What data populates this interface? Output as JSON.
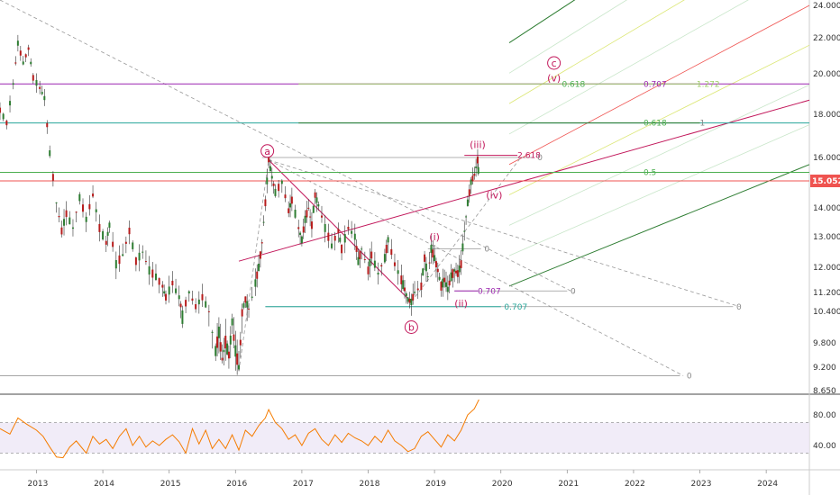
{
  "chart_data": {
    "type": "line",
    "instrument_note": "",
    "price_axis": {
      "ticks": [
        "24.000",
        "22.000",
        "20.000",
        "18.000",
        "16.000",
        "15.052",
        "14.000",
        "13.000",
        "12.000",
        "11.200",
        "10.400",
        "9.800",
        "9.200",
        "8.650"
      ],
      "tick_values": [
        24.0,
        22.0,
        20.0,
        18.0,
        16.0,
        15.052,
        14.0,
        13.0,
        12.0,
        11.2,
        10.4,
        9.8,
        9.2,
        8.65
      ],
      "current_value": "15.052",
      "current_value_num": 15.052,
      "ylim": [
        8.65,
        24.0
      ]
    },
    "time_axis": {
      "ticks": [
        "2013",
        "2014",
        "2015",
        "2016",
        "2017",
        "2018",
        "2019",
        "2020",
        "2021",
        "2022",
        "2023",
        "2024"
      ],
      "tick_years": [
        2013,
        2014,
        2015,
        2016,
        2017,
        2018,
        2019,
        2020,
        2021,
        2022,
        2023,
        2024
      ],
      "xlim": [
        2012.45,
        2024.65
      ]
    },
    "rsi_axis": {
      "ticks": [
        "80.00",
        "40.00"
      ],
      "tick_values": [
        80,
        40
      ],
      "upper_band": 70,
      "lower_band": 30,
      "last_value": 100
    },
    "price_series": [
      [
        2012.45,
        18.2
      ],
      [
        2012.55,
        17.6
      ],
      [
        2012.65,
        19.5
      ],
      [
        2012.72,
        21.7
      ],
      [
        2012.8,
        20.6
      ],
      [
        2012.88,
        21.4
      ],
      [
        2012.95,
        19.8
      ],
      [
        2013.05,
        19.3
      ],
      [
        2013.12,
        18.8
      ],
      [
        2013.2,
        16.2
      ],
      [
        2013.3,
        14.2
      ],
      [
        2013.38,
        13.2
      ],
      [
        2013.45,
        13.8
      ],
      [
        2013.55,
        13.3
      ],
      [
        2013.65,
        14.4
      ],
      [
        2013.75,
        13.6
      ],
      [
        2013.85,
        14.5
      ],
      [
        2013.95,
        13.3
      ],
      [
        2014.05,
        12.8
      ],
      [
        2014.1,
        13.4
      ],
      [
        2014.2,
        12.1
      ],
      [
        2014.3,
        12.4
      ],
      [
        2014.4,
        13.2
      ],
      [
        2014.5,
        12.2
      ],
      [
        2014.6,
        12.5
      ],
      [
        2014.7,
        11.9
      ],
      [
        2014.8,
        11.7
      ],
      [
        2014.9,
        11.4
      ],
      [
        2014.95,
        11.0
      ],
      [
        2015.05,
        11.5
      ],
      [
        2015.15,
        11.0
      ],
      [
        2015.2,
        10.3
      ],
      [
        2015.3,
        11.2
      ],
      [
        2015.4,
        10.6
      ],
      [
        2015.5,
        11.0
      ],
      [
        2015.6,
        10.4
      ],
      [
        2015.7,
        9.6
      ],
      [
        2015.75,
        10.0
      ],
      [
        2015.8,
        9.4
      ],
      [
        2015.85,
        9.8
      ],
      [
        2015.9,
        9.5
      ],
      [
        2015.95,
        10.2
      ],
      [
        2016.0,
        9.6
      ],
      [
        2016.05,
        9.2
      ],
      [
        2016.1,
        10.4
      ],
      [
        2016.15,
        10.9
      ],
      [
        2016.2,
        10.5
      ],
      [
        2016.3,
        11.5
      ],
      [
        2016.35,
        12.0
      ],
      [
        2016.4,
        12.8
      ],
      [
        2016.45,
        14.2
      ],
      [
        2016.5,
        15.9
      ],
      [
        2016.55,
        15.2
      ],
      [
        2016.6,
        14.6
      ],
      [
        2016.7,
        15.0
      ],
      [
        2016.8,
        13.9
      ],
      [
        2016.85,
        14.3
      ],
      [
        2016.95,
        13.3
      ],
      [
        2017.0,
        12.9
      ],
      [
        2017.05,
        13.6
      ],
      [
        2017.1,
        14.0
      ],
      [
        2017.15,
        13.4
      ],
      [
        2017.2,
        14.5
      ],
      [
        2017.25,
        14.1
      ],
      [
        2017.35,
        13.3
      ],
      [
        2017.45,
        12.7
      ],
      [
        2017.55,
        13.2
      ],
      [
        2017.6,
        12.6
      ],
      [
        2017.7,
        13.3
      ],
      [
        2017.8,
        13.0
      ],
      [
        2017.85,
        12.2
      ],
      [
        2017.9,
        12.6
      ],
      [
        2018.0,
        11.9
      ],
      [
        2018.05,
        12.4
      ],
      [
        2018.15,
        11.8
      ],
      [
        2018.25,
        12.3
      ],
      [
        2018.3,
        12.9
      ],
      [
        2018.4,
        12.1
      ],
      [
        2018.5,
        11.6
      ],
      [
        2018.55,
        11.3
      ],
      [
        2018.6,
        10.9
      ],
      [
        2018.65,
        10.8
      ],
      [
        2018.7,
        11.2
      ],
      [
        2018.8,
        11.4
      ],
      [
        2018.85,
        12.3
      ],
      [
        2018.9,
        11.7
      ],
      [
        2018.95,
        12.6
      ],
      [
        2019.0,
        12.3
      ],
      [
        2019.05,
        11.9
      ],
      [
        2019.1,
        11.4
      ],
      [
        2019.15,
        11.6
      ],
      [
        2019.2,
        11.3
      ],
      [
        2019.25,
        11.7
      ],
      [
        2019.3,
        11.9
      ],
      [
        2019.35,
        11.8
      ],
      [
        2019.4,
        12.1
      ],
      [
        2019.45,
        13.2
      ],
      [
        2019.5,
        14.2
      ],
      [
        2019.55,
        15.0
      ],
      [
        2019.6,
        15.3
      ],
      [
        2019.65,
        15.9
      ],
      [
        2019.67,
        15.05
      ]
    ],
    "horizontal_levels": [
      {
        "value": 19.5,
        "label": "",
        "color": "#9c27b0",
        "x_start": 2012.45
      },
      {
        "value": 17.6,
        "label": "",
        "color": "#26a69a",
        "x_start": 2012.45
      },
      {
        "value": 15.4,
        "label": "",
        "color": "#4caf50",
        "x_start": 2012.45
      },
      {
        "value": 15.05,
        "label": "",
        "color": "#ef5350",
        "x_start": 2012.45
      }
    ],
    "fib_labels": [
      {
        "text": "0.618",
        "x": 2020.92,
        "y": 19.5,
        "color": "#4caf50"
      },
      {
        "text": "0.707",
        "x": 2022.15,
        "y": 19.5,
        "color": "#9c27b0"
      },
      {
        "text": "1.272",
        "x": 2022.95,
        "y": 19.5,
        "color": "#9ccc65"
      },
      {
        "text": "0.618",
        "x": 2022.15,
        "y": 17.6,
        "color": "#4caf50"
      },
      {
        "text": "1",
        "x": 2023.0,
        "y": 17.6,
        "color": "#888888"
      },
      {
        "text": "2.618",
        "x": 2020.25,
        "y": 16.1,
        "color": "#c2185b"
      },
      {
        "text": "0",
        "x": 2020.55,
        "y": 16.0,
        "color": "#888888"
      },
      {
        "text": "0.5",
        "x": 2022.15,
        "y": 15.4,
        "color": "#4caf50"
      },
      {
        "text": "0",
        "x": 2019.75,
        "y": 12.6,
        "color": "#888888"
      },
      {
        "text": "0.707",
        "x": 2019.65,
        "y": 11.25,
        "color": "#9c27b0"
      },
      {
        "text": "0",
        "x": 2021.05,
        "y": 11.25,
        "color": "#888888"
      },
      {
        "text": "0.707",
        "x": 2020.05,
        "y": 10.6,
        "color": "#26a69a"
      },
      {
        "text": "0",
        "x": 2023.55,
        "y": 10.6,
        "color": "#888888"
      },
      {
        "text": "0",
        "x": 2022.8,
        "y": 9.0,
        "color": "#888888"
      }
    ],
    "wave_labels": [
      {
        "text": "a",
        "x": 2016.48,
        "y": 16.3,
        "circled": true
      },
      {
        "text": "b",
        "x": 2018.65,
        "y": 10.1,
        "circled": true
      },
      {
        "text": "c",
        "x": 2020.8,
        "y": 20.6,
        "circled": true
      },
      {
        "text": "(v)",
        "x": 2020.8,
        "y": 19.8,
        "circled": false
      },
      {
        "text": "(iii)",
        "x": 2019.65,
        "y": 16.6,
        "circled": false
      },
      {
        "text": "(iv)",
        "x": 2019.9,
        "y": 14.5,
        "circled": false
      },
      {
        "text": "(i)",
        "x": 2019.0,
        "y": 13.0,
        "circled": false
      },
      {
        "text": "(ii)",
        "x": 2019.4,
        "y": 10.75,
        "circled": false
      }
    ],
    "rsi_series": [
      [
        2012.45,
        62
      ],
      [
        2012.6,
        55
      ],
      [
        2012.72,
        76
      ],
      [
        2012.85,
        68
      ],
      [
        2013.0,
        60
      ],
      [
        2013.1,
        52
      ],
      [
        2013.2,
        38
      ],
      [
        2013.3,
        25
      ],
      [
        2013.4,
        24
      ],
      [
        2013.5,
        38
      ],
      [
        2013.6,
        46
      ],
      [
        2013.75,
        30
      ],
      [
        2013.85,
        52
      ],
      [
        2013.95,
        42
      ],
      [
        2014.05,
        48
      ],
      [
        2014.15,
        36
      ],
      [
        2014.25,
        52
      ],
      [
        2014.35,
        62
      ],
      [
        2014.45,
        40
      ],
      [
        2014.55,
        52
      ],
      [
        2014.65,
        38
      ],
      [
        2014.75,
        46
      ],
      [
        2014.85,
        40
      ],
      [
        2014.95,
        48
      ],
      [
        2015.05,
        54
      ],
      [
        2015.15,
        45
      ],
      [
        2015.25,
        30
      ],
      [
        2015.35,
        62
      ],
      [
        2015.45,
        42
      ],
      [
        2015.55,
        60
      ],
      [
        2015.65,
        36
      ],
      [
        2015.75,
        48
      ],
      [
        2015.85,
        36
      ],
      [
        2015.95,
        54
      ],
      [
        2016.05,
        34
      ],
      [
        2016.15,
        60
      ],
      [
        2016.25,
        52
      ],
      [
        2016.35,
        66
      ],
      [
        2016.45,
        76
      ],
      [
        2016.5,
        87
      ],
      [
        2016.6,
        70
      ],
      [
        2016.7,
        62
      ],
      [
        2016.8,
        48
      ],
      [
        2016.9,
        54
      ],
      [
        2017.0,
        40
      ],
      [
        2017.1,
        56
      ],
      [
        2017.2,
        62
      ],
      [
        2017.3,
        48
      ],
      [
        2017.4,
        40
      ],
      [
        2017.5,
        54
      ],
      [
        2017.6,
        44
      ],
      [
        2017.7,
        56
      ],
      [
        2017.8,
        50
      ],
      [
        2017.9,
        46
      ],
      [
        2018.0,
        40
      ],
      [
        2018.1,
        52
      ],
      [
        2018.2,
        44
      ],
      [
        2018.3,
        60
      ],
      [
        2018.4,
        46
      ],
      [
        2018.5,
        40
      ],
      [
        2018.6,
        32
      ],
      [
        2018.7,
        36
      ],
      [
        2018.8,
        52
      ],
      [
        2018.9,
        58
      ],
      [
        2019.0,
        48
      ],
      [
        2019.1,
        38
      ],
      [
        2019.2,
        54
      ],
      [
        2019.3,
        46
      ],
      [
        2019.4,
        60
      ],
      [
        2019.5,
        80
      ],
      [
        2019.6,
        88
      ],
      [
        2019.67,
        100
      ]
    ]
  }
}
